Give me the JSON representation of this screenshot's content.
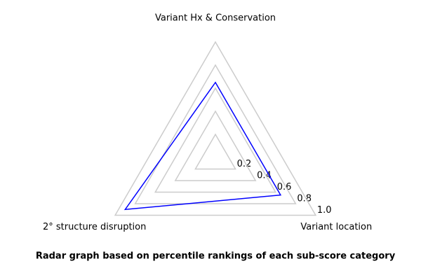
{
  "chart_data": {
    "type": "radar",
    "title": "Radar graph based on percentile rankings of each sub-score category",
    "categories": [
      "Variant Hx & Conservation",
      "2° structure disruption",
      "Variant location"
    ],
    "series": [
      {
        "color": "#0000ff",
        "values": [
          0.65,
          0.9,
          0.65
        ]
      }
    ],
    "rlim": [
      0,
      1.0
    ],
    "rticks": [
      0.2,
      0.4,
      0.6,
      0.8,
      {
        "value": 1.0,
        "label": "1.0"
      }
    ],
    "grid_color": "#cccccc"
  }
}
